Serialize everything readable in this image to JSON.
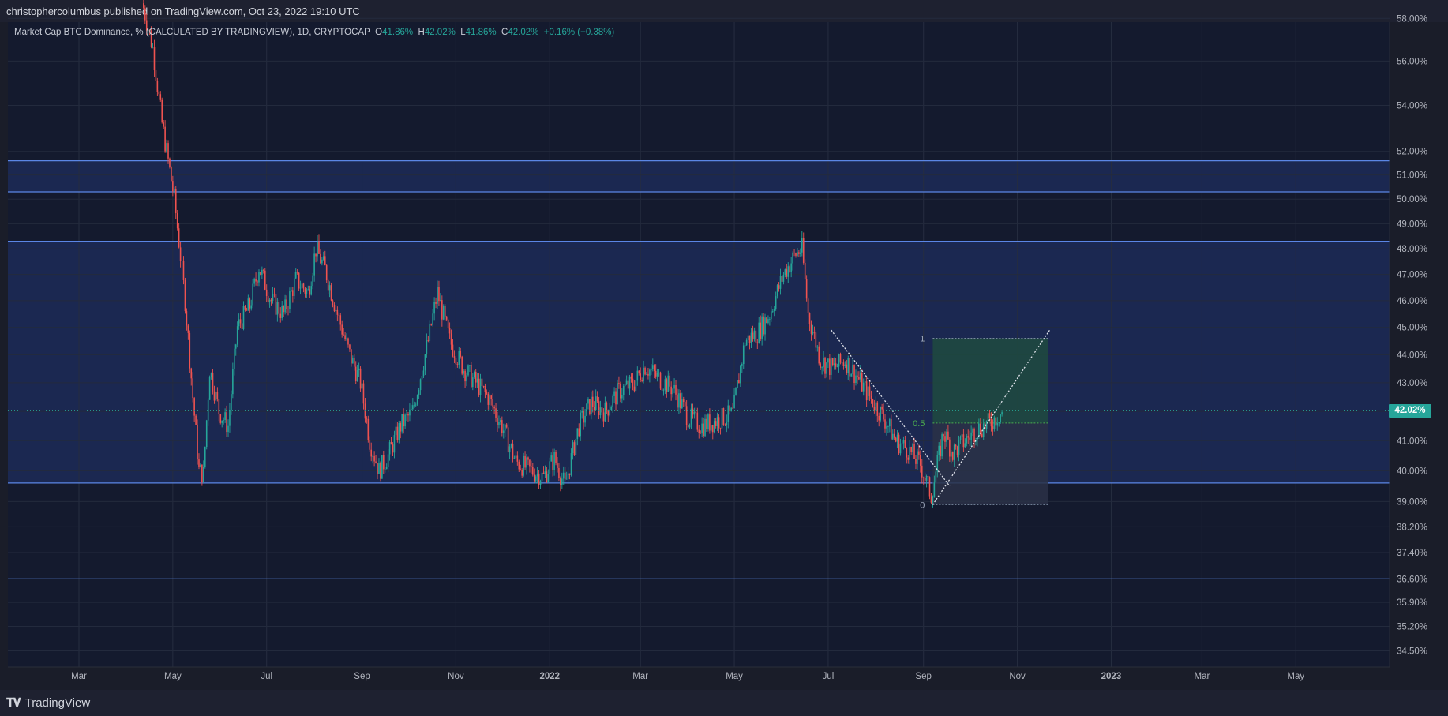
{
  "header": {
    "published": "christophercolumbus published on TradingView.com, Oct 23, 2022 19:10 UTC"
  },
  "legend": {
    "symbol": "Market Cap BTC Dominance, % (CALCULATED BY TRADINGVIEW), 1D, CRYPTOCAP",
    "o_label": "O",
    "o_value": "41.86%",
    "h_label": "H",
    "h_value": "42.02%",
    "l_label": "L",
    "l_value": "41.86%",
    "c_label": "C",
    "c_value": "42.02%",
    "change": "+0.16% (+0.38%)"
  },
  "footer": {
    "brand": "TradingView"
  },
  "colors": {
    "up": "#26a69a",
    "down": "#ef5350",
    "hline": "#5b86e5",
    "zone": "#1e2d5e",
    "fib_green": "#1f4a3f",
    "fib_grey": "#2a3147"
  },
  "chart_data": {
    "type": "candlestick",
    "symbol": "Market Cap BTC Dominance, % (CALCULATED BY TRADINGVIEW)",
    "interval": "1D",
    "x_tick_labels": [
      "Mar",
      "May",
      "Jul",
      "Sep",
      "Nov",
      "2022",
      "Mar",
      "May",
      "Jul",
      "Sep",
      "Nov",
      "2023",
      "Mar",
      "May"
    ],
    "y_tick_labels": [
      "58.00%",
      "56.00%",
      "54.00%",
      "52.00%",
      "51.00%",
      "50.00%",
      "49.00%",
      "48.00%",
      "47.00%",
      "46.00%",
      "45.00%",
      "44.00%",
      "43.00%",
      "42.00%",
      "41.00%",
      "40.00%",
      "39.00%",
      "38.20%",
      "37.40%",
      "36.60%",
      "35.90%",
      "35.20%",
      "34.50%"
    ],
    "y_scale": "log",
    "y_range": [
      34.2,
      58.2
    ],
    "last_price": 42.02,
    "last_price_label": "42.02%",
    "horizontal_levels": [
      51.6,
      50.3,
      48.3,
      39.6,
      36.6
    ],
    "zones": [
      [
        50.3,
        51.6
      ],
      [
        39.6,
        48.3
      ]
    ],
    "price_path": [
      {
        "date": "2021-04-12",
        "v": 58.5
      },
      {
        "date": "2021-04-18",
        "v": 56.6
      },
      {
        "date": "2021-04-24",
        "v": 53.2
      },
      {
        "date": "2021-05-02",
        "v": 50.0
      },
      {
        "date": "2021-05-09",
        "v": 46.0
      },
      {
        "date": "2021-05-14",
        "v": 42.5
      },
      {
        "date": "2021-05-18",
        "v": 40.0
      },
      {
        "date": "2021-05-21",
        "v": 39.9
      },
      {
        "date": "2021-05-25",
        "v": 43.5
      },
      {
        "date": "2021-05-31",
        "v": 42.0
      },
      {
        "date": "2021-06-06",
        "v": 41.5
      },
      {
        "date": "2021-06-12",
        "v": 45.0
      },
      {
        "date": "2021-06-20",
        "v": 45.8
      },
      {
        "date": "2021-06-26",
        "v": 47.3
      },
      {
        "date": "2021-07-04",
        "v": 46.0
      },
      {
        "date": "2021-07-12",
        "v": 45.5
      },
      {
        "date": "2021-07-20",
        "v": 46.8
      },
      {
        "date": "2021-07-28",
        "v": 46.3
      },
      {
        "date": "2021-08-02",
        "v": 48.0
      },
      {
        "date": "2021-08-08",
        "v": 47.2
      },
      {
        "date": "2021-08-16",
        "v": 45.5
      },
      {
        "date": "2021-08-24",
        "v": 44.0
      },
      {
        "date": "2021-08-31",
        "v": 43.0
      },
      {
        "date": "2021-09-06",
        "v": 41.0
      },
      {
        "date": "2021-09-12",
        "v": 40.0
      },
      {
        "date": "2021-09-18",
        "v": 40.5
      },
      {
        "date": "2021-09-26",
        "v": 41.5
      },
      {
        "date": "2021-10-04",
        "v": 42.0
      },
      {
        "date": "2021-10-14",
        "v": 44.5
      },
      {
        "date": "2021-10-20",
        "v": 46.3
      },
      {
        "date": "2021-10-28",
        "v": 44.5
      },
      {
        "date": "2021-11-06",
        "v": 43.5
      },
      {
        "date": "2021-11-14",
        "v": 43.0
      },
      {
        "date": "2021-11-22",
        "v": 42.5
      },
      {
        "date": "2021-12-01",
        "v": 41.5
      },
      {
        "date": "2021-12-10",
        "v": 40.3
      },
      {
        "date": "2021-12-20",
        "v": 40.0
      },
      {
        "date": "2021-12-28",
        "v": 39.8
      },
      {
        "date": "2022-01-04",
        "v": 40.4
      },
      {
        "date": "2022-01-11",
        "v": 39.5
      },
      {
        "date": "2022-01-20",
        "v": 41.5
      },
      {
        "date": "2022-01-28",
        "v": 42.3
      },
      {
        "date": "2022-02-06",
        "v": 42.0
      },
      {
        "date": "2022-02-15",
        "v": 42.7
      },
      {
        "date": "2022-02-25",
        "v": 43.0
      },
      {
        "date": "2022-03-04",
        "v": 43.6
      },
      {
        "date": "2022-03-12",
        "v": 43.2
      },
      {
        "date": "2022-03-22",
        "v": 42.8
      },
      {
        "date": "2022-04-01",
        "v": 41.8
      },
      {
        "date": "2022-04-10",
        "v": 41.5
      },
      {
        "date": "2022-04-20",
        "v": 41.7
      },
      {
        "date": "2022-04-30",
        "v": 41.9
      },
      {
        "date": "2022-05-08",
        "v": 44.5
      },
      {
        "date": "2022-05-16",
        "v": 44.8
      },
      {
        "date": "2022-05-24",
        "v": 45.5
      },
      {
        "date": "2022-06-02",
        "v": 47.0
      },
      {
        "date": "2022-06-10",
        "v": 47.8
      },
      {
        "date": "2022-06-14",
        "v": 48.0
      },
      {
        "date": "2022-06-18",
        "v": 45.5
      },
      {
        "date": "2022-06-26",
        "v": 43.8
      },
      {
        "date": "2022-07-04",
        "v": 43.5
      },
      {
        "date": "2022-07-12",
        "v": 43.8
      },
      {
        "date": "2022-07-20",
        "v": 43.2
      },
      {
        "date": "2022-07-28",
        "v": 42.5
      },
      {
        "date": "2022-08-06",
        "v": 41.8
      },
      {
        "date": "2022-08-14",
        "v": 41.0
      },
      {
        "date": "2022-08-22",
        "v": 40.7
      },
      {
        "date": "2022-08-30",
        "v": 40.2
      },
      {
        "date": "2022-09-06",
        "v": 39.2
      },
      {
        "date": "2022-09-10",
        "v": 40.2
      },
      {
        "date": "2022-09-14",
        "v": 41.3
      },
      {
        "date": "2022-09-20",
        "v": 40.6
      },
      {
        "date": "2022-09-28",
        "v": 41.0
      },
      {
        "date": "2022-10-06",
        "v": 41.4
      },
      {
        "date": "2022-10-14",
        "v": 41.6
      },
      {
        "date": "2022-10-23",
        "v": 42.02
      }
    ],
    "annotations": {
      "fib_levels": [
        {
          "label": "1",
          "value": 44.6
        },
        {
          "label": "0.5",
          "value": 41.6
        },
        {
          "label": "0",
          "value": 38.9
        }
      ],
      "fib_box": {
        "start": "2022-09-07",
        "end": "2022-11-21"
      },
      "downtrend_line": [
        {
          "date": "2022-07-03",
          "v": 44.9
        },
        {
          "date": "2022-09-18",
          "v": 39.5
        }
      ],
      "uptrend_line": [
        {
          "date": "2022-09-07",
          "v": 38.9
        },
        {
          "date": "2022-11-22",
          "v": 44.9
        }
      ]
    }
  }
}
